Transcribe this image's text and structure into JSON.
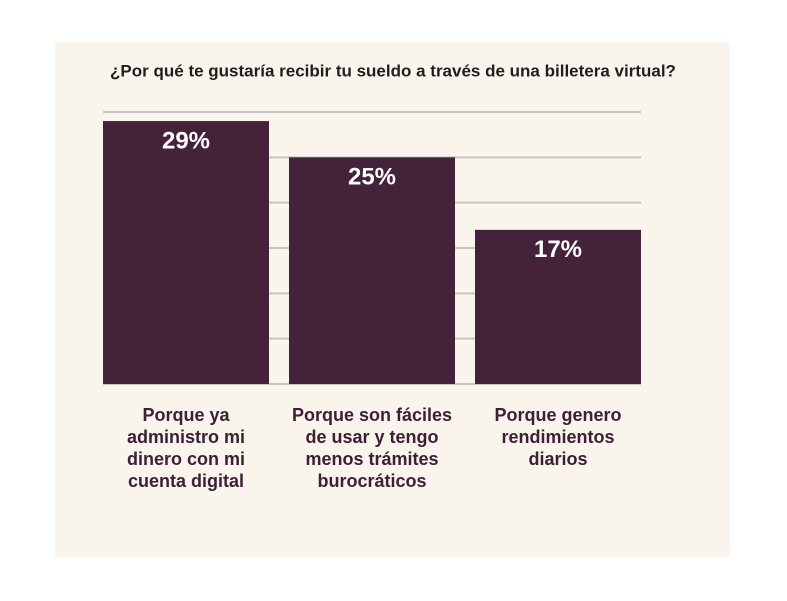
{
  "chart_data": {
    "type": "bar",
    "title": "¿Por qué te gustaría recibir tu sueldo a través de una billetera virtual?",
    "categories": [
      "Porque ya administro mi dinero con mi cuenta digital",
      "Porque son fáciles de usar y tengo menos trámites burocráticos",
      "Porque genero rendimientos diarios"
    ],
    "values": [
      29,
      25,
      17
    ],
    "value_labels": [
      "29%",
      "25%",
      "17%"
    ],
    "color": "#43223a",
    "ylim": [
      0,
      30
    ],
    "yticks": [
      0,
      5,
      10,
      15,
      20,
      25,
      30
    ],
    "grid": true
  }
}
